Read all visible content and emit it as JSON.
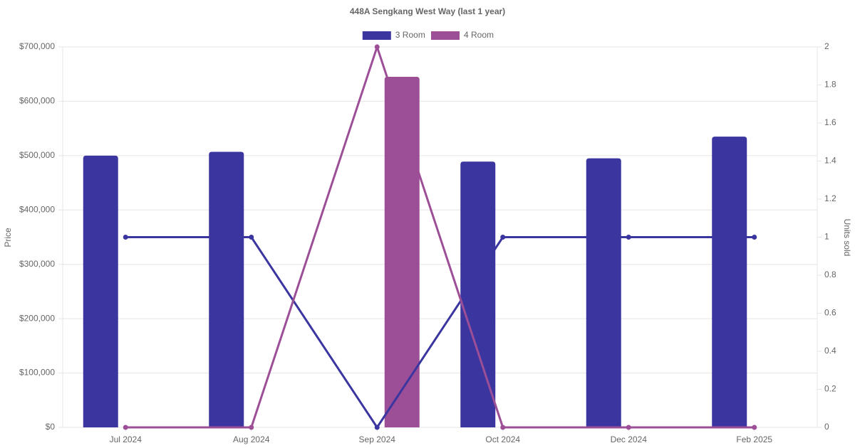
{
  "chart_data": {
    "type": "bar",
    "title": "448A Sengkang West Way (last 1 year)",
    "categories": [
      "Jul 2024",
      "Aug 2024",
      "Sep 2024",
      "Oct 2024",
      "Dec 2024",
      "Feb 2025"
    ],
    "series": [
      {
        "name": "3 Room",
        "color": "#3b35a0",
        "values": [
          500000,
          507000,
          null,
          489000,
          495000,
          535000
        ],
        "units": [
          1,
          1,
          0,
          1,
          1,
          1
        ]
      },
      {
        "name": "4 Room",
        "color": "#9c4f96",
        "values": [
          null,
          null,
          645000,
          null,
          null,
          null
        ],
        "units": [
          0,
          0,
          2,
          0,
          0,
          0
        ]
      }
    ],
    "y_label": "Price",
    "y2_label": "Units sold",
    "ylim": [
      0,
      700000
    ],
    "yticks": [
      {
        "value": 0,
        "label": "$0"
      },
      {
        "value": 100000,
        "label": "$100,000"
      },
      {
        "value": 200000,
        "label": "$200,000"
      },
      {
        "value": 300000,
        "label": "$300,000"
      },
      {
        "value": 400000,
        "label": "$400,000"
      },
      {
        "value": 500000,
        "label": "$500,000"
      },
      {
        "value": 600000,
        "label": "$600,000"
      },
      {
        "value": 700000,
        "label": "$700,000"
      }
    ],
    "y2lim": [
      0,
      2
    ],
    "y2ticks": [
      0,
      0.2,
      0.4,
      0.6,
      0.8,
      1,
      1.2,
      1.4,
      1.6,
      1.8,
      2
    ],
    "grid": true,
    "legend": "top"
  }
}
